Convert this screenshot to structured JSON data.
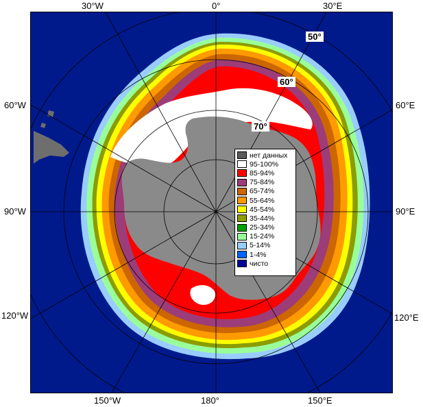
{
  "map": {
    "labels": {
      "lon_top_30w": "30°W",
      "lon_top_0": "0°",
      "lon_top_30e": "30°E",
      "lon_left_60w": "60°W",
      "lon_right_60e": "60°E",
      "lon_left_90w": "90°W",
      "lon_right_90e": "90°E",
      "lon_left_120w": "120°W",
      "lon_right_120e": "120°E",
      "lon_bottom_150w": "150°W",
      "lon_bottom_180": "180°",
      "lon_bottom_150e": "150°E",
      "lat_50": "50°",
      "lat_60": "60°",
      "lat_70": "70°"
    },
    "colors": {
      "ocean": "#001a8c",
      "land_dark": "#5a5a5a",
      "antarctica": "#8a8a8a",
      "ice_95_100": "#ffffff",
      "ice_85_94": "#ff0000",
      "ice_75_84": "#9c3c78",
      "ice_65_74": "#cc6600",
      "ice_55_64": "#ff9a00",
      "ice_45_54": "#ffff00",
      "ice_35_44": "#8c9c00",
      "ice_25_34": "#00a000",
      "ice_15_24": "#99ff99",
      "ice_5_14": "#99ccff",
      "ice_1_4": "#0066ff",
      "clear": "#000099"
    }
  },
  "legend": {
    "items": [
      {
        "label": "нет данных",
        "color": "#5a5a5a"
      },
      {
        "label": "95-100%",
        "color": "#ffffff"
      },
      {
        "label": "85-94%",
        "color": "#ff0000"
      },
      {
        "label": "75-84%",
        "color": "#9c3c78"
      },
      {
        "label": "65-74%",
        "color": "#cc6600"
      },
      {
        "label": "55-64%",
        "color": "#ff9a00"
      },
      {
        "label": "45-54%",
        "color": "#ffff00"
      },
      {
        "label": "35-44%",
        "color": "#8c9c00"
      },
      {
        "label": "25-34%",
        "color": "#00a000"
      },
      {
        "label": "15-24%",
        "color": "#99ff99"
      },
      {
        "label": "5-14%",
        "color": "#99ccff"
      },
      {
        "label": "1-4%",
        "color": "#0066ff"
      },
      {
        "label": "чисто",
        "color": "#000099"
      }
    ]
  }
}
